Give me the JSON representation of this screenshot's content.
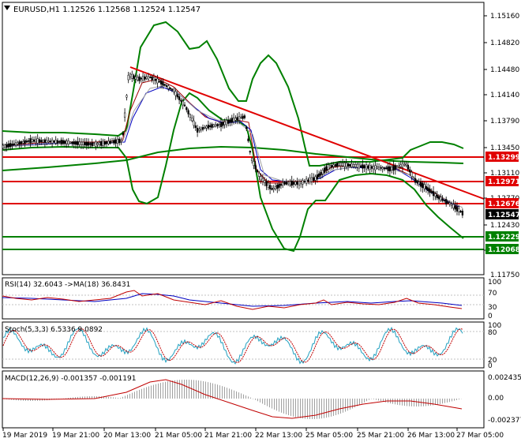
{
  "chart_header": {
    "symbol_line": "EURUSD,H1  1.12526 1.12568 1.12524 1.12547",
    "dropdown_icon": "triangle-down-icon"
  },
  "price_axis": {
    "ticks": [
      "1.15160",
      "1.14820",
      "1.14480",
      "1.14140",
      "1.13790",
      "1.13450",
      "1.13110",
      "1.12770",
      "1.12430",
      "1.12090",
      "1.11750"
    ]
  },
  "level_labels": {
    "r1": {
      "text": "1.13299",
      "color": "#e00000"
    },
    "r2": {
      "text": "1.12971",
      "color": "#e00000"
    },
    "r3": {
      "text": "1.12676",
      "color": "#e00000"
    },
    "bid": {
      "text": "1.12547",
      "color": "#000000"
    },
    "s1": {
      "text": "1.12229",
      "color": "#008000"
    },
    "s2": {
      "text": "1.12068",
      "color": "#008000"
    }
  },
  "rsi": {
    "title": "RSI(14) 32.6043 ->MA(18) 36.8431",
    "ticks": [
      "100",
      "70",
      "30",
      "0"
    ]
  },
  "stoch": {
    "title": "Stoch(5,3,3) 6.5336 9.0892",
    "ticks": [
      "100",
      "80",
      "20",
      "0"
    ]
  },
  "macd": {
    "title": "MACD(12,26,9) -0.001357 -0.001191",
    "ticks": [
      "0.002435",
      "0.00",
      "-0.002377"
    ]
  },
  "time_axis": {
    "labels": [
      "19 Mar 2019",
      "19 Mar 21:00",
      "20 Mar 13:00",
      "21 Mar 05:00",
      "21 Mar 21:00",
      "22 Mar 13:00",
      "25 Mar 05:00",
      "25 Mar 21:00",
      "26 Mar 13:00",
      "27 Mar 05:00"
    ]
  },
  "colors": {
    "bollinger": "#008000",
    "trendline": "#e00000",
    "candle": "#000000",
    "rsi_line": "#0000c0",
    "rsi_ma": "#c00000",
    "macd_hist": "#a0a0a0",
    "macd_signal": "#c00000",
    "stoch_main": "#20a0c0",
    "stoch_signal": "#c00000"
  }
}
